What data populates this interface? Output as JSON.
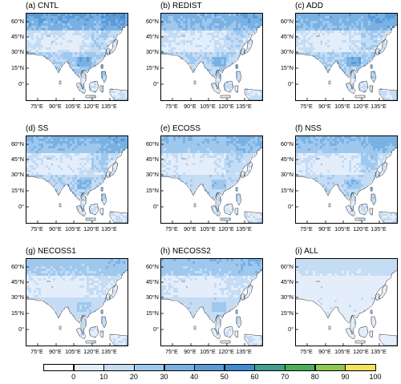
{
  "panels": [
    {
      "label": "(a) CNTL",
      "intensity": 1.0,
      "ne_boost": 0.2,
      "cn_boost": 0.5
    },
    {
      "label": "(b) REDIST",
      "intensity": 0.85,
      "ne_boost": 0.3,
      "cn_boost": 0.6
    },
    {
      "label": "(c) ADD",
      "intensity": 0.9,
      "ne_boost": 0.3,
      "cn_boost": 0.6
    },
    {
      "label": "(d) SS",
      "intensity": 0.8,
      "ne_boost": 0.6,
      "cn_boost": 0.5
    },
    {
      "label": "(e) ECOSS",
      "intensity": 0.7,
      "ne_boost": 0.5,
      "cn_boost": 0.5
    },
    {
      "label": "(f) NSS",
      "intensity": 0.75,
      "ne_boost": 0.7,
      "cn_boost": 0.5
    },
    {
      "label": "(g) NECOSS1",
      "intensity": 0.6,
      "ne_boost": 0.2,
      "cn_boost": 0.4
    },
    {
      "label": "(h) NECOSS2",
      "intensity": 0.65,
      "ne_boost": 0.2,
      "cn_boost": 0.5
    },
    {
      "label": "(i) ALL",
      "intensity": 0.25,
      "ne_boost": 0.0,
      "cn_boost": 0.1
    }
  ],
  "y_ticks": [
    "60°N",
    "45°N",
    "30°N",
    "15°N",
    "0°"
  ],
  "x_ticks": [
    "75°E",
    "90°E",
    "105°E",
    "120°E",
    "135°E"
  ],
  "legend": {
    "ticks": [
      "0",
      "10",
      "20",
      "30",
      "40",
      "50",
      "60",
      "70",
      "80",
      "90",
      "100"
    ],
    "colors": [
      "#ffffff",
      "#e4eefb",
      "#c4dcf4",
      "#9fc8ee",
      "#79b1e3",
      "#5a9ad7",
      "#3f8bcf",
      "#3f9e8e",
      "#4cae5a",
      "#8ec852",
      "#f1e35a"
    ]
  }
}
